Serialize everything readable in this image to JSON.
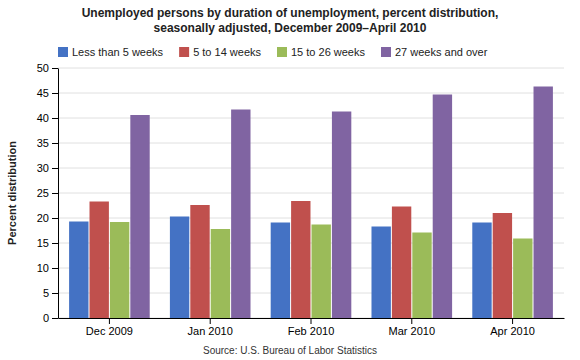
{
  "chart_data": {
    "type": "bar",
    "title": "Unemployed persons by duration of unemployment, percent distribution,\nseasonally adjusted, December 2009–April 2010",
    "categories": [
      "Dec 2009",
      "Jan 2010",
      "Feb 2010",
      "Mar 2010",
      "Apr 2010"
    ],
    "series": [
      {
        "name": "Less than 5 weeks",
        "color": "#4472C4",
        "values": [
          19.3,
          20.3,
          19.1,
          18.3,
          19.1
        ]
      },
      {
        "name": "5 to 14 weeks",
        "color": "#C0504D",
        "values": [
          23.3,
          22.6,
          23.4,
          22.3,
          21.0
        ]
      },
      {
        "name": "15 to 26 weeks",
        "color": "#9BBB59",
        "values": [
          19.2,
          17.8,
          18.7,
          17.1,
          15.9
        ]
      },
      {
        "name": "27 weeks and over",
        "color": "#8064A2",
        "values": [
          40.6,
          41.7,
          41.3,
          44.7,
          46.3
        ]
      }
    ],
    "ylabel": "Percent distribution",
    "ylim": [
      0,
      50
    ],
    "yticks": [
      0,
      5,
      10,
      15,
      20,
      25,
      30,
      35,
      40,
      45,
      50
    ],
    "grid": true,
    "legend": "upper left",
    "source": "Source: U.S. Bureau of Labor Statistics"
  }
}
